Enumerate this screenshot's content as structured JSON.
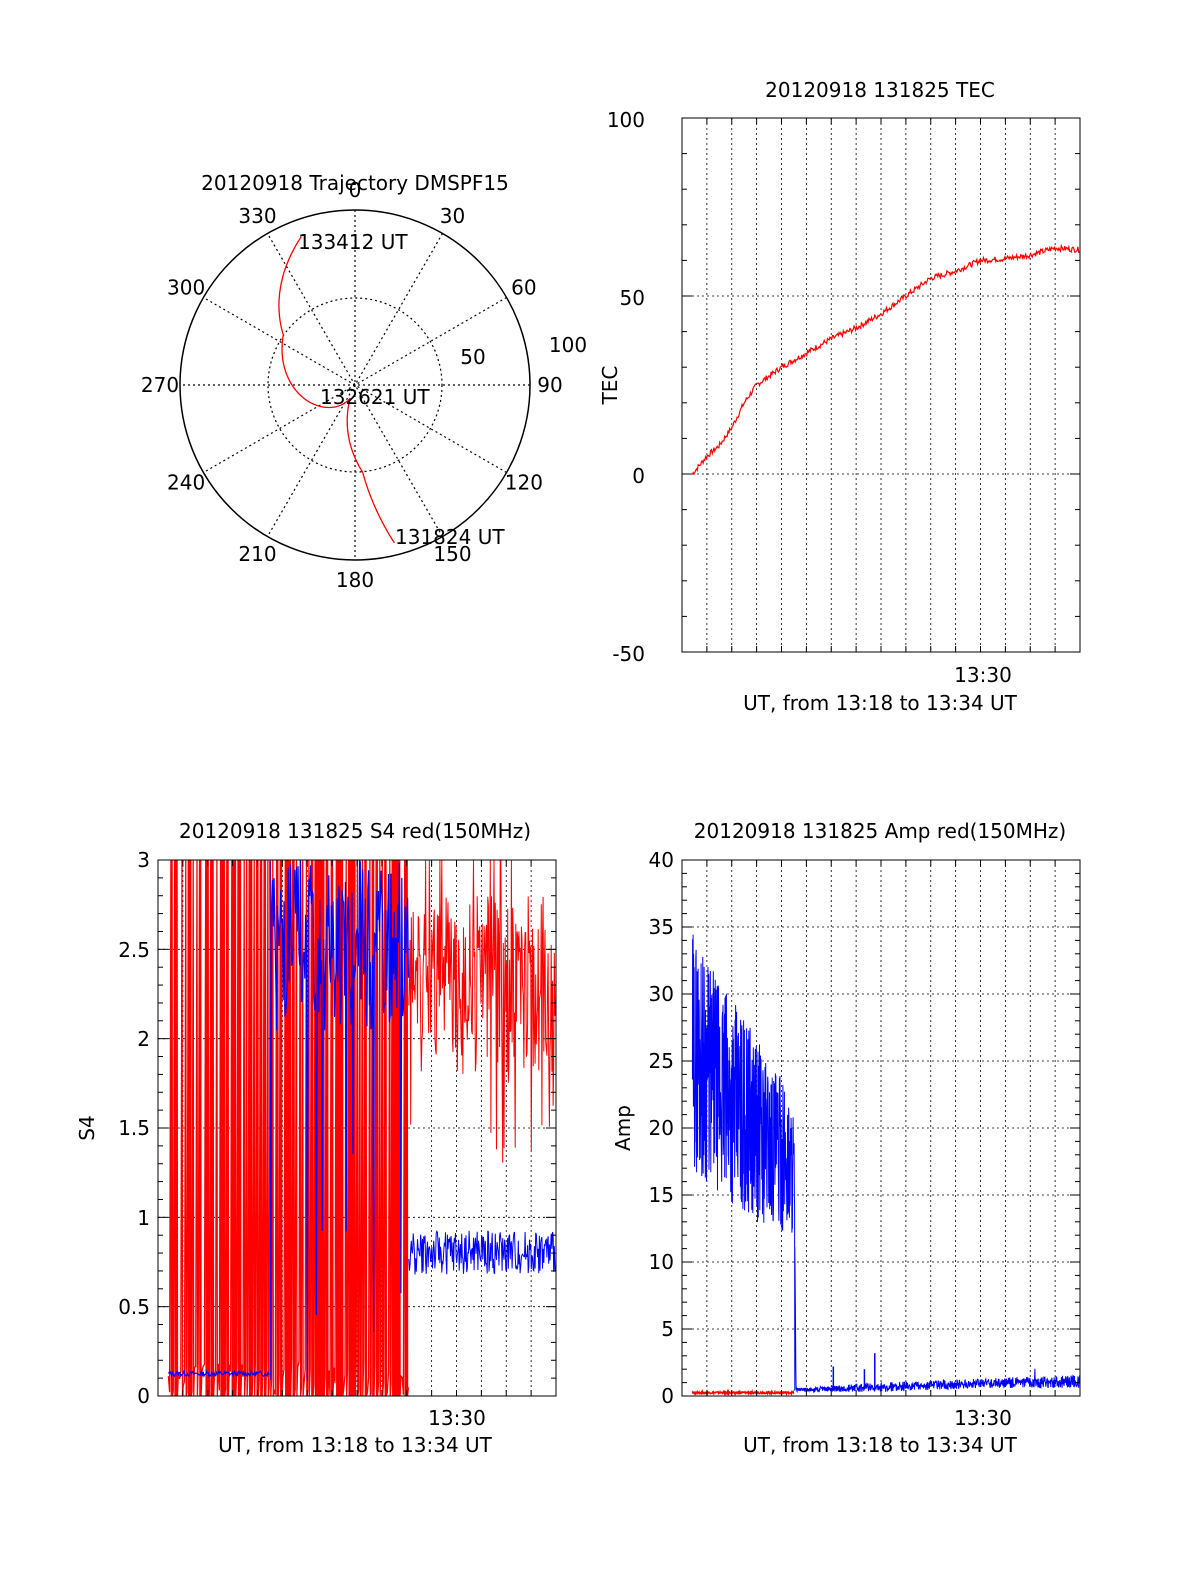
{
  "polar": {
    "title": "20120918 Trajectory DMSPF15",
    "angle_labels": [
      "0",
      "30",
      "60",
      "90",
      "120",
      "150",
      "180",
      "210",
      "240",
      "270",
      "300",
      "330"
    ],
    "radial_labels": [
      "50",
      "100"
    ],
    "point_labels": {
      "start": "131824 UT",
      "mid": "132621 UT",
      "end": "133412 UT"
    },
    "colors": {
      "track": "#ff0000"
    }
  },
  "tec": {
    "title": "20120918 131825 TEC",
    "xlabel": "UT, from 13:18 to 13:34 UT",
    "ylabel": "TEC",
    "xtick": "13:30",
    "yticks": [
      "-50",
      "0",
      "50",
      "100"
    ]
  },
  "s4": {
    "title": "20120918 131825 S4 red(150MHz)",
    "xlabel": "UT, from 13:18 to 13:34 UT",
    "ylabel": "S4",
    "xtick": "13:30",
    "yticks": [
      "0",
      "0.5",
      "1",
      "1.5",
      "2",
      "2.5",
      "3"
    ]
  },
  "amp": {
    "title": "20120918 131825 Amp red(150MHz)",
    "xlabel": "UT, from 13:18 to 13:34 UT",
    "ylabel": "Amp",
    "xtick": "13:30",
    "yticks": [
      "0",
      "5",
      "10",
      "15",
      "20",
      "25",
      "30",
      "35",
      "40"
    ]
  },
  "chart_data": [
    {
      "type": "scatter",
      "subtype": "polar trajectory",
      "title": "20120918 Trajectory DMSPF15",
      "angle_unit": "degrees azimuth",
      "radial_ticks": [
        50,
        100
      ],
      "rlim": [
        0,
        100
      ],
      "series": [
        {
          "color": "#ff0000",
          "points": [
            {
              "label": "131824 UT",
              "azimuth": 166,
              "radius": 93
            },
            {
              "azimuth": 175,
              "radius": 50
            },
            {
              "label": "132621 UT",
              "azimuth": 200,
              "radius": 8
            },
            {
              "azimuth": 305,
              "radius": 50
            },
            {
              "label": "133412 UT",
              "azimuth": 340,
              "radius": 90
            }
          ]
        }
      ]
    },
    {
      "type": "line",
      "title": "20120918 131825 TEC",
      "xlabel": "UT, from 13:18 to 13:34 UT",
      "ylabel": "TEC",
      "xlim": [
        "13:18",
        "13:34"
      ],
      "ylim": [
        -50,
        100
      ],
      "grid": true,
      "series": [
        {
          "color": "#ff0000",
          "x": [
            "13:18:25",
            "13:19:00",
            "13:19:30",
            "13:20:00",
            "13:20:30",
            "13:21:00",
            "13:22:00",
            "13:23:00",
            "13:24:00",
            "13:25:00",
            "13:26:00",
            "13:27:00",
            "13:28:00",
            "13:29:00",
            "13:30:00",
            "13:31:00",
            "13:32:00",
            "13:33:00",
            "13:34:00"
          ],
          "y": [
            0,
            5,
            8,
            13,
            20,
            25,
            30,
            34,
            38,
            41,
            45,
            50,
            55,
            57,
            60,
            60.5,
            61.5,
            63.5,
            63
          ]
        }
      ]
    },
    {
      "type": "line",
      "title": "20120918 131825 S4 red(150MHz)",
      "xlabel": "UT, from 13:18 to 13:34 UT",
      "ylabel": "S4",
      "xlim": [
        "13:18",
        "13:34"
      ],
      "ylim": [
        0,
        3
      ],
      "grid": true,
      "series": [
        {
          "color": "#ff0000",
          "description_values": {
            "x": [
              "13:18:25",
              "13:28:00",
              "13:28:30",
              "13:30:00",
              "13:32:00",
              "13:34:00"
            ],
            "y_range": [
              [
                0,
                3
              ],
              [
                0,
                3
              ],
              [
                1.6,
                3
              ],
              [
                1.8,
                2.8
              ],
              [
                1.8,
                2.8
              ],
              [
                1.7,
                3
              ]
            ]
          }
        },
        {
          "color": "#0000ff",
          "description_values": {
            "x": [
              "13:18:25",
              "13:22:30",
              "13:23:00",
              "13:28:00",
              "13:28:30",
              "13:30:00",
              "13:32:00",
              "13:34:00"
            ],
            "y": [
              0.12,
              0.13,
              3,
              3,
              0.85,
              0.8,
              0.78,
              0.8
            ]
          }
        }
      ]
    },
    {
      "type": "line",
      "title": "20120918 131825 Amp red(150MHz)",
      "xlabel": "UT, from 13:18 to 13:34 UT",
      "ylabel": "Amp",
      "xlim": [
        "13:18",
        "13:34"
      ],
      "ylim": [
        0,
        40
      ],
      "grid": true,
      "series": [
        {
          "color": "#0000ff",
          "description_values": {
            "x": [
              "13:18:25",
              "13:19:30",
              "13:21:00",
              "13:22:30",
              "13:22:35",
              "13:26:00",
              "13:30:00",
              "13:34:00"
            ],
            "y_range": [
              [
                17,
                35
              ],
              [
                15,
                31
              ],
              [
                13,
                27
              ],
              [
                12,
                22
              ],
              [
                0.3,
                0.6
              ],
              [
                0.3,
                1.0
              ],
              [
                0.6,
                1.3
              ],
              [
                0.6,
                1.6
              ]
            ]
          }
        },
        {
          "color": "#ff0000",
          "description_values": {
            "x": [
              "13:18:25",
              "13:22:30"
            ],
            "y": [
              0.25,
              0.25
            ]
          }
        }
      ]
    }
  ]
}
